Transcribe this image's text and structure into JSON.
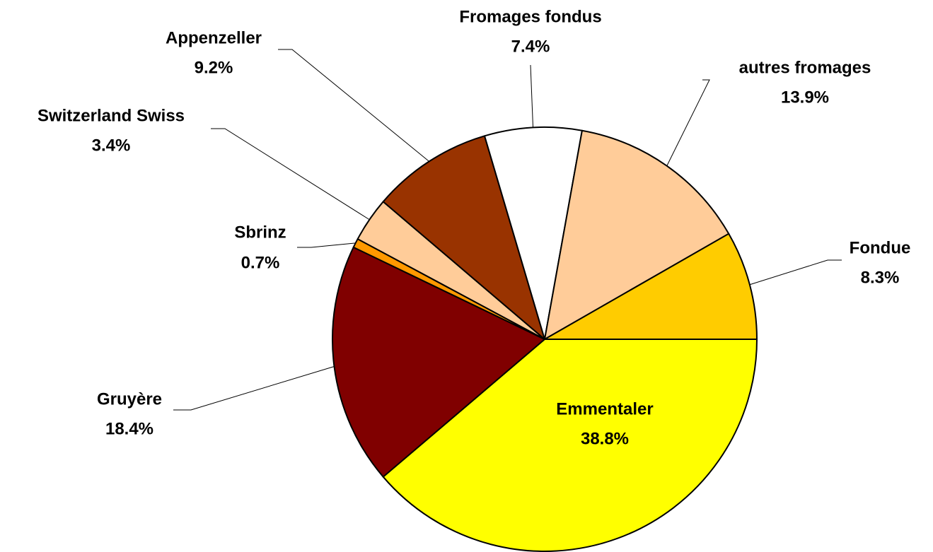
{
  "chart_data": {
    "type": "pie",
    "categories": [
      "Emmentaler",
      "Gruyère",
      "Sbrinz",
      "Switzerland Swiss",
      "Appenzeller",
      "Fromages fondus",
      "autres fromages",
      "Fondue"
    ],
    "values": [
      38.8,
      18.4,
      0.7,
      3.4,
      9.2,
      7.4,
      13.9,
      8.3
    ],
    "value_labels": [
      "38.8%",
      "18.4%",
      "0.7%",
      "3.4%",
      "9.2%",
      "7.4%",
      "13.9%",
      "8.3%"
    ],
    "colors": [
      "#FFFF00",
      "#800000",
      "#FF9900",
      "#FFCC99",
      "#993300",
      "#FFFFFF",
      "#FFCC99",
      "#FFCC00"
    ]
  }
}
